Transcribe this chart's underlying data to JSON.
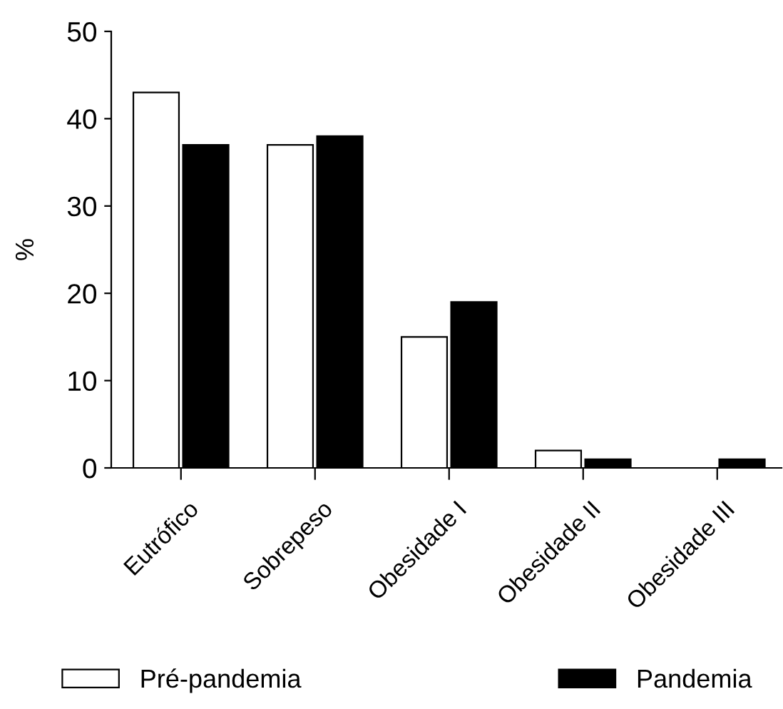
{
  "chart_data": {
    "type": "bar",
    "ylabel": "%",
    "categories": [
      "Eutrófico",
      "Sobrepeso",
      "Obesidade I",
      "Obesidade II",
      "Obesidade III"
    ],
    "series": [
      {
        "name": "Pré-pandemia",
        "color": "#ffffff",
        "values": [
          43,
          37,
          15,
          2,
          0
        ]
      },
      {
        "name": "Pandemia",
        "color": "#000000",
        "values": [
          37,
          38,
          19,
          1,
          1
        ]
      }
    ],
    "ylim": [
      0,
      50
    ],
    "yticks": [
      0,
      10,
      20,
      30,
      40,
      50
    ],
    "grid": false,
    "legend": "bottom"
  }
}
